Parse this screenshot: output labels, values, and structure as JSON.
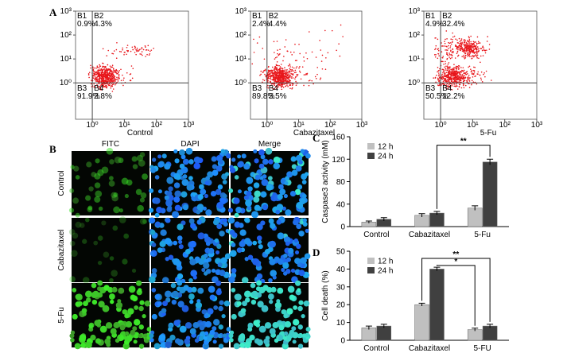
{
  "panels": {
    "A": "A",
    "B": "B",
    "C": "C",
    "D": "D"
  },
  "microscopy": {
    "columns": [
      "FITC",
      "DAPI",
      "Merge"
    ],
    "rows": [
      "Control",
      "Cabazitaxel",
      "5-Fu"
    ]
  },
  "chart_data": [
    {
      "type": "quadrant",
      "x_label": "Control",
      "xscale": "log",
      "yscale": "log",
      "xlim": [
        0.3,
        1000
      ],
      "ylim": [
        0.03,
        1000
      ],
      "xticks": [
        {
          "value": 1,
          "label": "10⁰"
        },
        {
          "value": 10,
          "label": "10¹"
        },
        {
          "value": 100,
          "label": "10²"
        },
        {
          "value": 1000,
          "label": "10³"
        }
      ],
      "yticks": [
        {
          "value": 1,
          "label": "10⁰"
        },
        {
          "value": 10,
          "label": "10¹"
        },
        {
          "value": 100,
          "label": "10²"
        },
        {
          "value": 1000,
          "label": "10³"
        }
      ],
      "quadrant_gate": {
        "x": 1,
        "y": 1
      },
      "quadrants": [
        {
          "name": "B1",
          "value": 0.9,
          "value_label": "0.9%"
        },
        {
          "name": "B2",
          "value": 4.3,
          "value_label": "4.3%"
        },
        {
          "name": "B3",
          "value": 91.9,
          "value_label": "91.9%"
        },
        {
          "name": "B4",
          "value": 2.8,
          "value_label": "2.8%"
        }
      ]
    },
    {
      "type": "quadrant",
      "x_label": "Cabazitaxel",
      "xscale": "log",
      "yscale": "log",
      "xlim": [
        0.3,
        1000
      ],
      "ylim": [
        0.03,
        1000
      ],
      "xticks": [
        {
          "value": 1,
          "label": "10⁰"
        },
        {
          "value": 10,
          "label": "10¹"
        },
        {
          "value": 100,
          "label": "10²"
        },
        {
          "value": 1000,
          "label": "10³"
        }
      ],
      "yticks": [
        {
          "value": 1,
          "label": "10⁰"
        },
        {
          "value": 10,
          "label": "10¹"
        },
        {
          "value": 100,
          "label": "10²"
        },
        {
          "value": 1000,
          "label": "10³"
        }
      ],
      "quadrant_gate": {
        "x": 1,
        "y": 1
      },
      "quadrants": [
        {
          "name": "B1",
          "value": 2.4,
          "value_label": "2.4%"
        },
        {
          "name": "B2",
          "value": 4.4,
          "value_label": "4.4%"
        },
        {
          "name": "B3",
          "value": 89.8,
          "value_label": "89.8%"
        },
        {
          "name": "B4",
          "value": 3.5,
          "value_label": "3.5%"
        }
      ]
    },
    {
      "type": "quadrant",
      "x_label": "5-Fu",
      "xscale": "log",
      "yscale": "log",
      "xlim": [
        0.3,
        1000
      ],
      "ylim": [
        0.03,
        1000
      ],
      "xticks": [
        {
          "value": 1,
          "label": "10⁰"
        },
        {
          "value": 10,
          "label": "10¹"
        },
        {
          "value": 100,
          "label": "10²"
        },
        {
          "value": 1000,
          "label": "10³"
        }
      ],
      "yticks": [
        {
          "value": 1,
          "label": "10⁰"
        },
        {
          "value": 10,
          "label": "10¹"
        },
        {
          "value": 100,
          "label": "10²"
        },
        {
          "value": 1000,
          "label": "10³"
        }
      ],
      "quadrant_gate": {
        "x": 1,
        "y": 1
      },
      "quadrants": [
        {
          "name": "B1",
          "value": 4.9,
          "value_label": "4.9%"
        },
        {
          "name": "B2",
          "value": 32.4,
          "value_label": "32.4%"
        },
        {
          "name": "B3",
          "value": 50.5,
          "value_label": "50.5%"
        },
        {
          "name": "B4",
          "value": 12.2,
          "value_label": "12.2%"
        }
      ]
    },
    {
      "type": "bar",
      "y_label": "Caspase3 activity (mM)",
      "categories": [
        "Control",
        "Cabazitaxel",
        "5-Fu"
      ],
      "series": [
        {
          "name": "12 h",
          "color": "#c0c0c0",
          "values": [
            8,
            20,
            33
          ],
          "errors": [
            2,
            3,
            4
          ]
        },
        {
          "name": "24 h",
          "color": "#404040",
          "values": [
            13,
            24,
            115
          ],
          "errors": [
            3,
            3,
            5
          ]
        }
      ],
      "ylim": [
        0,
        160
      ],
      "yticks": [
        0,
        40,
        80,
        120,
        160
      ],
      "annotations": [
        "**"
      ]
    },
    {
      "type": "bar",
      "y_label": "Cell death (%)",
      "categories": [
        "Control",
        "Cabazitaxel",
        "5-FU"
      ],
      "series": [
        {
          "name": "12 h",
          "color": "#c0c0c0",
          "values": [
            7,
            20,
            6
          ],
          "errors": [
            1,
            0.8,
            0.8
          ]
        },
        {
          "name": "24 h",
          "color": "#404040",
          "values": [
            8,
            40,
            8
          ],
          "errors": [
            1,
            1,
            1
          ]
        }
      ],
      "ylim": [
        0,
        50
      ],
      "yticks": [
        0,
        10,
        20,
        30,
        40,
        50
      ],
      "annotations": [
        "*",
        "**"
      ]
    }
  ]
}
